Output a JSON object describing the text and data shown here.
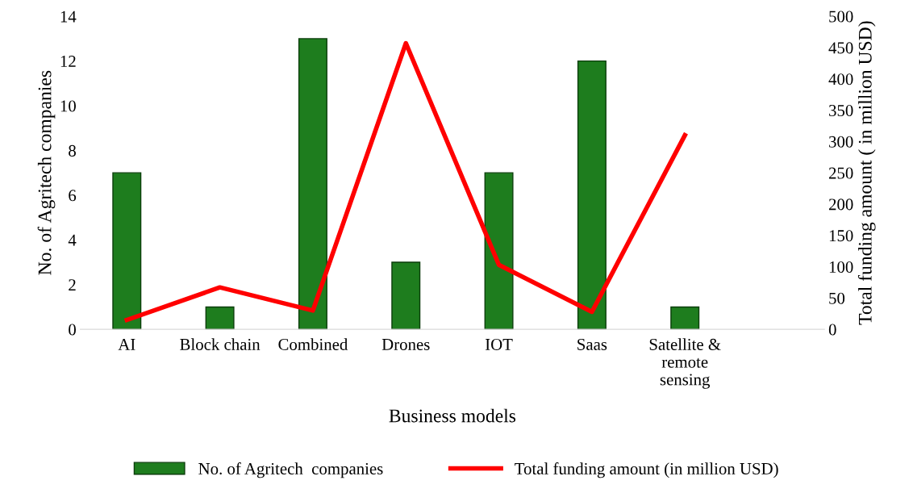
{
  "chart_data": {
    "type": "bar",
    "xlabel": "Business models",
    "ylabel": "No. of Agritech companies",
    "y2label": "Total funding amount ( in million USD)",
    "categories": [
      "AI",
      "Block chain",
      "Combined",
      "Drones",
      "IOT",
      "Saas",
      "Satellite &\nremote\nsensing",
      null
    ],
    "series": [
      {
        "name": "No. of Agritech  companies",
        "color": "#1e7d1e",
        "values": [
          7,
          1,
          13,
          3,
          7,
          12,
          1,
          null
        ]
      },
      {
        "name": "Total funding amount (in million USD)",
        "type": "line",
        "axis": "y2",
        "color": "#ff0000",
        "values": [
          15,
          67,
          30,
          457,
          103,
          28,
          310,
          null
        ]
      }
    ],
    "ylim": [
      0,
      14
    ],
    "yticks": [
      0,
      2,
      4,
      6,
      8,
      10,
      12,
      14
    ],
    "y2lim": [
      0,
      500
    ],
    "y2ticks": [
      0,
      50,
      100,
      150,
      200,
      250,
      300,
      350,
      400,
      450,
      500
    ],
    "grid": false,
    "legend": "bottom",
    "marker": "none",
    "line_style": "solid"
  }
}
